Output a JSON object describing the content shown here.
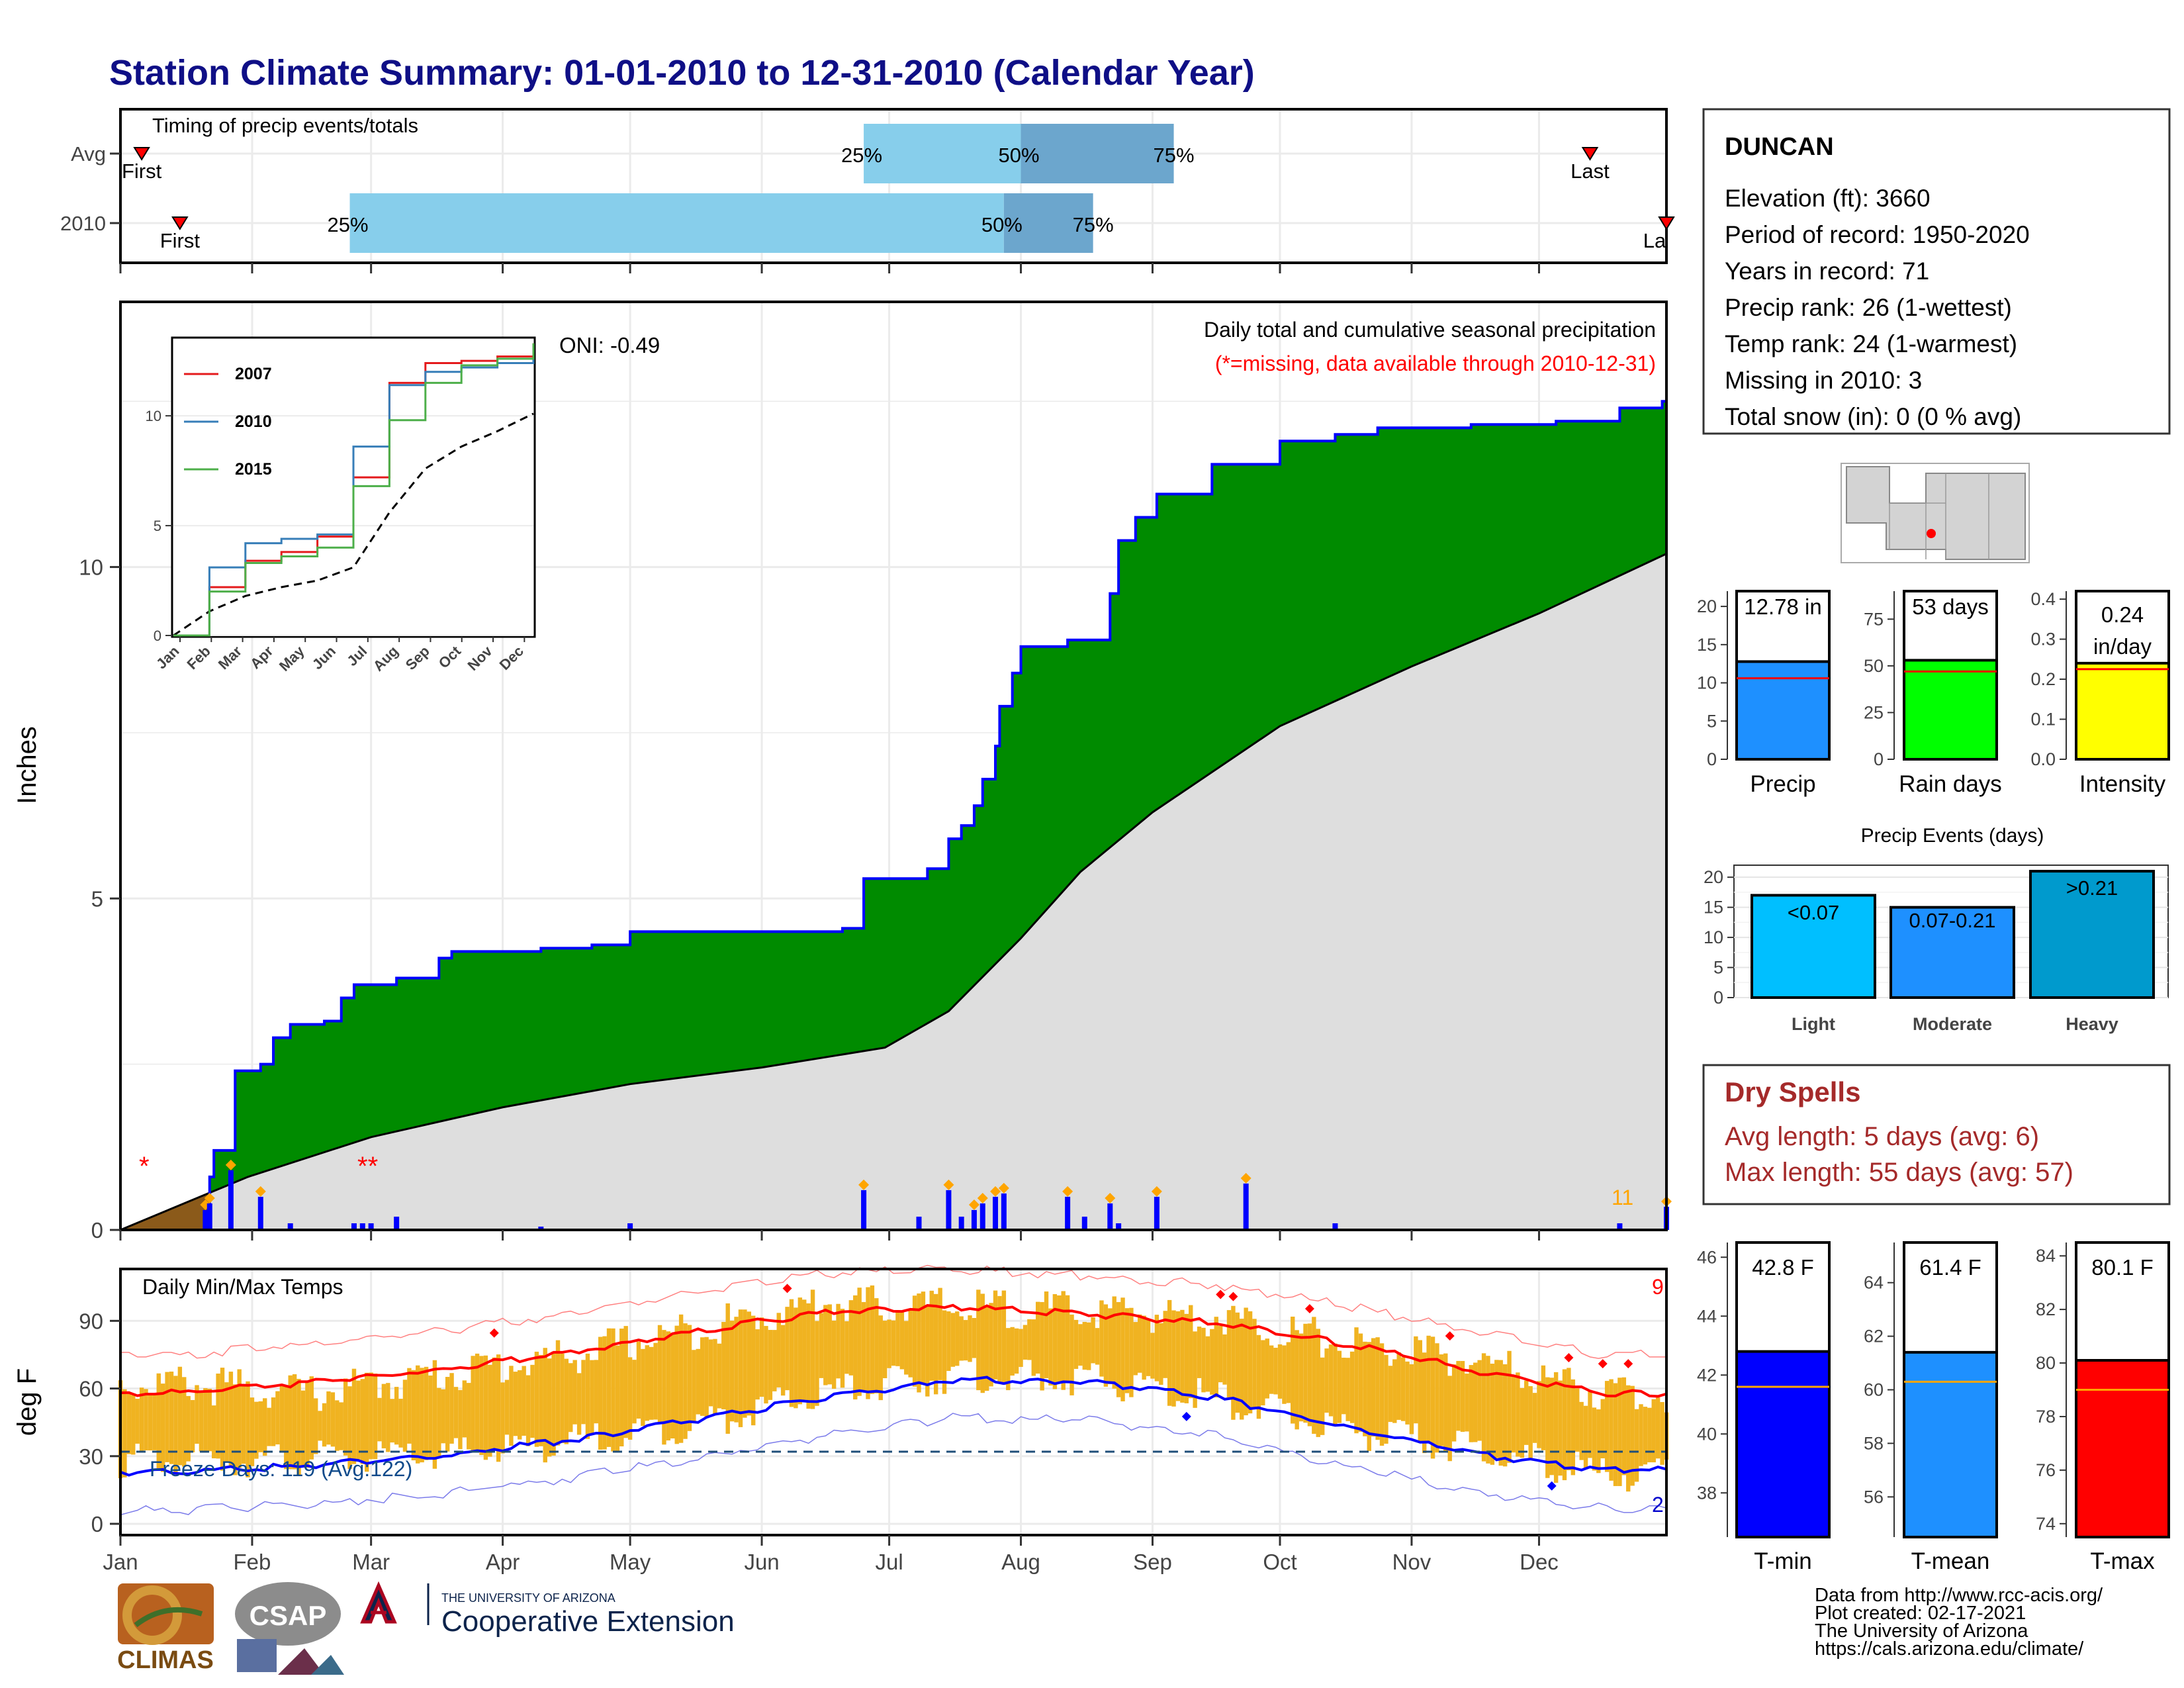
{
  "title": "Station Climate Summary: 01-01-2010 to 12-31-2010 (Calendar Year)",
  "timing": {
    "label": "Timing of precip events/totals",
    "rows": [
      {
        "name": "Avg",
        "first_label": "First",
        "last_label": "Last",
        "q25": "25%",
        "q50": "50%",
        "q75": "75%"
      },
      {
        "name": "2010",
        "first_label": "First",
        "last_label": "La",
        "q25": "25%",
        "q50": "50%",
        "q75": "75%"
      }
    ]
  },
  "station": {
    "name": "DUNCAN",
    "lines": [
      "Elevation (ft): 3660",
      "Period of record: 1950-2020",
      "Years in record: 71",
      "Precip rank: 26 (1-wettest)",
      "Temp rank: 24 (1-warmest)",
      "Missing in 2010: 3",
      "Total snow (in): 0 (0 % avg)"
    ]
  },
  "main": {
    "ylabel": "Inches",
    "oni": "ONI: -0.49",
    "subtitle": "Daily total and cumulative seasonal precipitation",
    "missing_note": "(*=missing, data available through 2010-12-31)",
    "count_label": "11"
  },
  "inset": {
    "legend": [
      "2007",
      "2010",
      "2015"
    ]
  },
  "temps": {
    "ylabel": "deg F",
    "title": "Daily Min/Max Temps",
    "freeze": "Freeze Days: 119 (Avg:122)",
    "count_high": "9",
    "count_low": "2",
    "months": [
      "Jan",
      "Feb",
      "Mar",
      "Apr",
      "May",
      "Jun",
      "Jul",
      "Aug",
      "Sep",
      "Oct",
      "Nov",
      "Dec"
    ]
  },
  "small_bars": {
    "precip": {
      "value_label": "12.78 in",
      "x_label": "Precip"
    },
    "raindays": {
      "value_label": "53 days",
      "x_label": "Rain days"
    },
    "intensity": {
      "value_label_1": "0.24",
      "value_label_2": "in/day",
      "x_label": "Intensity"
    }
  },
  "events": {
    "title": "Precip Events (days)",
    "bars": [
      {
        "category": "Light",
        "label": "<0.07"
      },
      {
        "category": "Moderate",
        "label": "0.07-0.21"
      },
      {
        "category": "Heavy",
        "label": ">0.21"
      }
    ]
  },
  "dry": {
    "title": "Dry Spells",
    "avg": "Avg length: 5 days (avg: 6)",
    "max": "Max length: 55 days (avg: 57)"
  },
  "temp_bars": {
    "tmin": {
      "value_label": "42.8 F",
      "x_label": "T-min"
    },
    "tmean": {
      "value_label": "61.4 F",
      "x_label": "T-mean"
    },
    "tmax": {
      "value_label": "80.1 F",
      "x_label": "T-max"
    }
  },
  "logos": {
    "climas": "CLIMAS",
    "csap": "CSAP",
    "ua_small": "THE UNIVERSITY OF ARIZONA",
    "ua_big": "Cooperative Extension"
  },
  "credits": [
    "Data from http://www.rcc-acis.org/",
    "Plot created: 02-17-2021",
    "The University of Arizona",
    "https://cals.arizona.edu/climate/"
  ],
  "chart_data": [
    {
      "type": "bar",
      "title": "Timing of precip events/totals",
      "categories": [
        "Avg",
        "2010"
      ],
      "series": [
        {
          "name": "25%",
          "values": [
            "2010-06-25",
            "2010-02-24"
          ]
        },
        {
          "name": "50%",
          "values": [
            "2010-08-01",
            "2010-07-28"
          ]
        },
        {
          "name": "75%",
          "values": [
            "2010-09-06",
            "2010-08-18"
          ]
        }
      ],
      "first": [
        "2010-01-06",
        "2010-01-15"
      ],
      "last": [
        "2010-12-13",
        "2010-12-31"
      ],
      "xlim": [
        "2010-01-01",
        "2010-12-31"
      ]
    },
    {
      "type": "area",
      "title": "Daily total and cumulative seasonal precipitation",
      "xlabel": "",
      "ylabel": "Inches",
      "xlim": [
        "2010-01-01",
        "2010-12-31"
      ],
      "ylim": [
        0,
        14
      ],
      "yticks": [
        0,
        5,
        10
      ],
      "cumulative_2010": [
        [
          "2010-01-01",
          0
        ],
        [
          "2010-01-22",
          0.8
        ],
        [
          "2010-01-23",
          1.2
        ],
        [
          "2010-01-27",
          1.2
        ],
        [
          "2010-01-28",
          2.4
        ],
        [
          "2010-02-03",
          2.5
        ],
        [
          "2010-02-06",
          2.9
        ],
        [
          "2010-02-10",
          3.1
        ],
        [
          "2010-02-18",
          3.15
        ],
        [
          "2010-02-22",
          3.5
        ],
        [
          "2010-02-25",
          3.7
        ],
        [
          "2010-03-07",
          3.8
        ],
        [
          "2010-03-17",
          4.1
        ],
        [
          "2010-03-20",
          4.2
        ],
        [
          "2010-04-10",
          4.25
        ],
        [
          "2010-04-22",
          4.3
        ],
        [
          "2010-05-01",
          4.5
        ],
        [
          "2010-06-20",
          4.55
        ],
        [
          "2010-06-25",
          5.3
        ],
        [
          "2010-07-10",
          5.45
        ],
        [
          "2010-07-15",
          5.9
        ],
        [
          "2010-07-18",
          6.1
        ],
        [
          "2010-07-21",
          6.4
        ],
        [
          "2010-07-23",
          6.8
        ],
        [
          "2010-07-26",
          7.3
        ],
        [
          "2010-07-27",
          7.9
        ],
        [
          "2010-07-30",
          8.4
        ],
        [
          "2010-08-01",
          8.8
        ],
        [
          "2010-08-12",
          8.9
        ],
        [
          "2010-08-22",
          9.6
        ],
        [
          "2010-08-24",
          10.4
        ],
        [
          "2010-08-28",
          10.75
        ],
        [
          "2010-09-02",
          11.1
        ],
        [
          "2010-09-15",
          11.55
        ],
        [
          "2010-10-01",
          11.9
        ],
        [
          "2010-10-14",
          12.0
        ],
        [
          "2010-10-24",
          12.1
        ],
        [
          "2010-11-15",
          12.15
        ],
        [
          "2010-12-05",
          12.2
        ],
        [
          "2010-12-20",
          12.4
        ],
        [
          "2010-12-30",
          12.5
        ],
        [
          "2010-12-31",
          12.78
        ]
      ],
      "cumulative_avg": [
        [
          "2010-01-01",
          0
        ],
        [
          "2010-01-31",
          0.8
        ],
        [
          "2010-03-01",
          1.4
        ],
        [
          "2010-04-01",
          1.85
        ],
        [
          "2010-05-01",
          2.2
        ],
        [
          "2010-06-01",
          2.45
        ],
        [
          "2010-06-30",
          2.75
        ],
        [
          "2010-07-15",
          3.3
        ],
        [
          "2010-08-01",
          4.4
        ],
        [
          "2010-08-15",
          5.4
        ],
        [
          "2010-09-01",
          6.3
        ],
        [
          "2010-10-01",
          7.6
        ],
        [
          "2010-11-01",
          8.5
        ],
        [
          "2010-12-01",
          9.3
        ],
        [
          "2010-12-31",
          10.2
        ]
      ],
      "daily_precip": [
        [
          "2010-01-21",
          0.3
        ],
        [
          "2010-01-22",
          0.4
        ],
        [
          "2010-01-27",
          0.9
        ],
        [
          "2010-02-03",
          0.5
        ],
        [
          "2010-02-10",
          0.1
        ],
        [
          "2010-02-25",
          0.1
        ],
        [
          "2010-02-27",
          0.1
        ],
        [
          "2010-03-01",
          0.1
        ],
        [
          "2010-03-07",
          0.2
        ],
        [
          "2010-04-10",
          0.05
        ],
        [
          "2010-05-01",
          0.1
        ],
        [
          "2010-06-25",
          0.6
        ],
        [
          "2010-07-08",
          0.2
        ],
        [
          "2010-07-15",
          0.6
        ],
        [
          "2010-07-18",
          0.2
        ],
        [
          "2010-07-21",
          0.3
        ],
        [
          "2010-07-23",
          0.4
        ],
        [
          "2010-07-26",
          0.5
        ],
        [
          "2010-07-28",
          0.55
        ],
        [
          "2010-08-12",
          0.5
        ],
        [
          "2010-08-16",
          0.2
        ],
        [
          "2010-08-22",
          0.4
        ],
        [
          "2010-08-24",
          0.1
        ],
        [
          "2010-09-02",
          0.5
        ],
        [
          "2010-09-23",
          0.7
        ],
        [
          "2010-10-14",
          0.1
        ],
        [
          "2010-12-20",
          0.1
        ],
        [
          "2010-12-31",
          0.35
        ]
      ],
      "series": [
        {
          "name": "2007",
          "values": [
            0,
            2.2,
            3.4,
            3.8,
            4.5,
            7.2,
            11.5,
            12.4,
            12.5,
            12.7,
            13.3
          ]
        },
        {
          "name": "2010",
          "values": [
            0,
            3.1,
            4.2,
            4.4,
            4.6,
            8.6,
            11.4,
            12.0,
            12.2,
            12.4,
            12.8
          ]
        },
        {
          "name": "2015",
          "values": [
            0,
            2.0,
            3.3,
            3.6,
            4.0,
            6.8,
            9.8,
            11.5,
            12.3,
            12.6,
            13.3
          ]
        }
      ],
      "inset_xticks": [
        "Jan",
        "Feb",
        "Mar",
        "Apr",
        "May",
        "Jun",
        "Jul",
        "Aug",
        "Sep",
        "Oct",
        "Nov",
        "Dec"
      ],
      "inset_yticks": [
        0,
        5,
        10
      ]
    },
    {
      "type": "bar",
      "title": "Daily Min/Max Temps",
      "ylabel": "deg F",
      "ylim": [
        -5,
        113
      ],
      "yticks": [
        0,
        30,
        60,
        90
      ],
      "categories": [
        "Jan",
        "Feb",
        "Mar",
        "Apr",
        "May",
        "Jun",
        "Jul",
        "Aug",
        "Sep",
        "Oct",
        "Nov",
        "Dec"
      ],
      "series": [
        {
          "name": "avg_max",
          "values": [
            58,
            63,
            68,
            76,
            85,
            94,
            96,
            93,
            89,
            80,
            68,
            58
          ]
        },
        {
          "name": "avg_min",
          "values": [
            23,
            26,
            30,
            37,
            46,
            56,
            64,
            63,
            56,
            43,
            31,
            24
          ]
        },
        {
          "name": "max",
          "values": [
            62,
            58,
            66,
            74,
            86,
            98,
            96,
            94,
            92,
            80,
            72,
            58
          ]
        },
        {
          "name": "min",
          "values": [
            28,
            29,
            30,
            36,
            44,
            58,
            66,
            64,
            56,
            42,
            33,
            22
          ]
        }
      ],
      "freeze_line": 32
    },
    {
      "type": "bar",
      "title": "",
      "categories": [
        "Precip"
      ],
      "values": [
        12.78
      ],
      "average": 10.6,
      "ylim": [
        0,
        22
      ],
      "yticks": [
        0,
        5,
        10,
        15,
        20
      ]
    },
    {
      "type": "bar",
      "title": "",
      "categories": [
        "Rain days"
      ],
      "values": [
        53
      ],
      "average": 47,
      "ylim": [
        0,
        90
      ],
      "yticks": [
        0,
        25,
        50,
        75
      ]
    },
    {
      "type": "bar",
      "title": "",
      "categories": [
        "Intensity"
      ],
      "values": [
        0.24
      ],
      "average": 0.225,
      "ylim": [
        0,
        0.42
      ],
      "yticks": [
        0.0,
        0.1,
        0.2,
        0.3,
        0.4
      ]
    },
    {
      "type": "bar",
      "title": "Precip Events (days)",
      "categories": [
        "Light",
        "Moderate",
        "Heavy"
      ],
      "values": [
        17,
        15,
        21
      ],
      "ylim": [
        0,
        22
      ],
      "yticks": [
        0,
        5,
        10,
        15,
        20
      ]
    },
    {
      "type": "bar",
      "title": "",
      "categories": [
        "T-min"
      ],
      "values": [
        42.8
      ],
      "average": 41.6,
      "ylim": [
        36.5,
        46.5
      ],
      "yticks": [
        38,
        40,
        42,
        44,
        46
      ]
    },
    {
      "type": "bar",
      "title": "",
      "categories": [
        "T-mean"
      ],
      "values": [
        61.4
      ],
      "average": 60.3,
      "ylim": [
        54.5,
        65.5
      ],
      "yticks": [
        56,
        58,
        60,
        62,
        64
      ]
    },
    {
      "type": "bar",
      "title": "",
      "categories": [
        "T-max"
      ],
      "values": [
        80.1
      ],
      "average": 79.0,
      "ylim": [
        73.5,
        84.5
      ],
      "yticks": [
        74,
        76,
        78,
        80,
        82,
        84
      ]
    }
  ]
}
